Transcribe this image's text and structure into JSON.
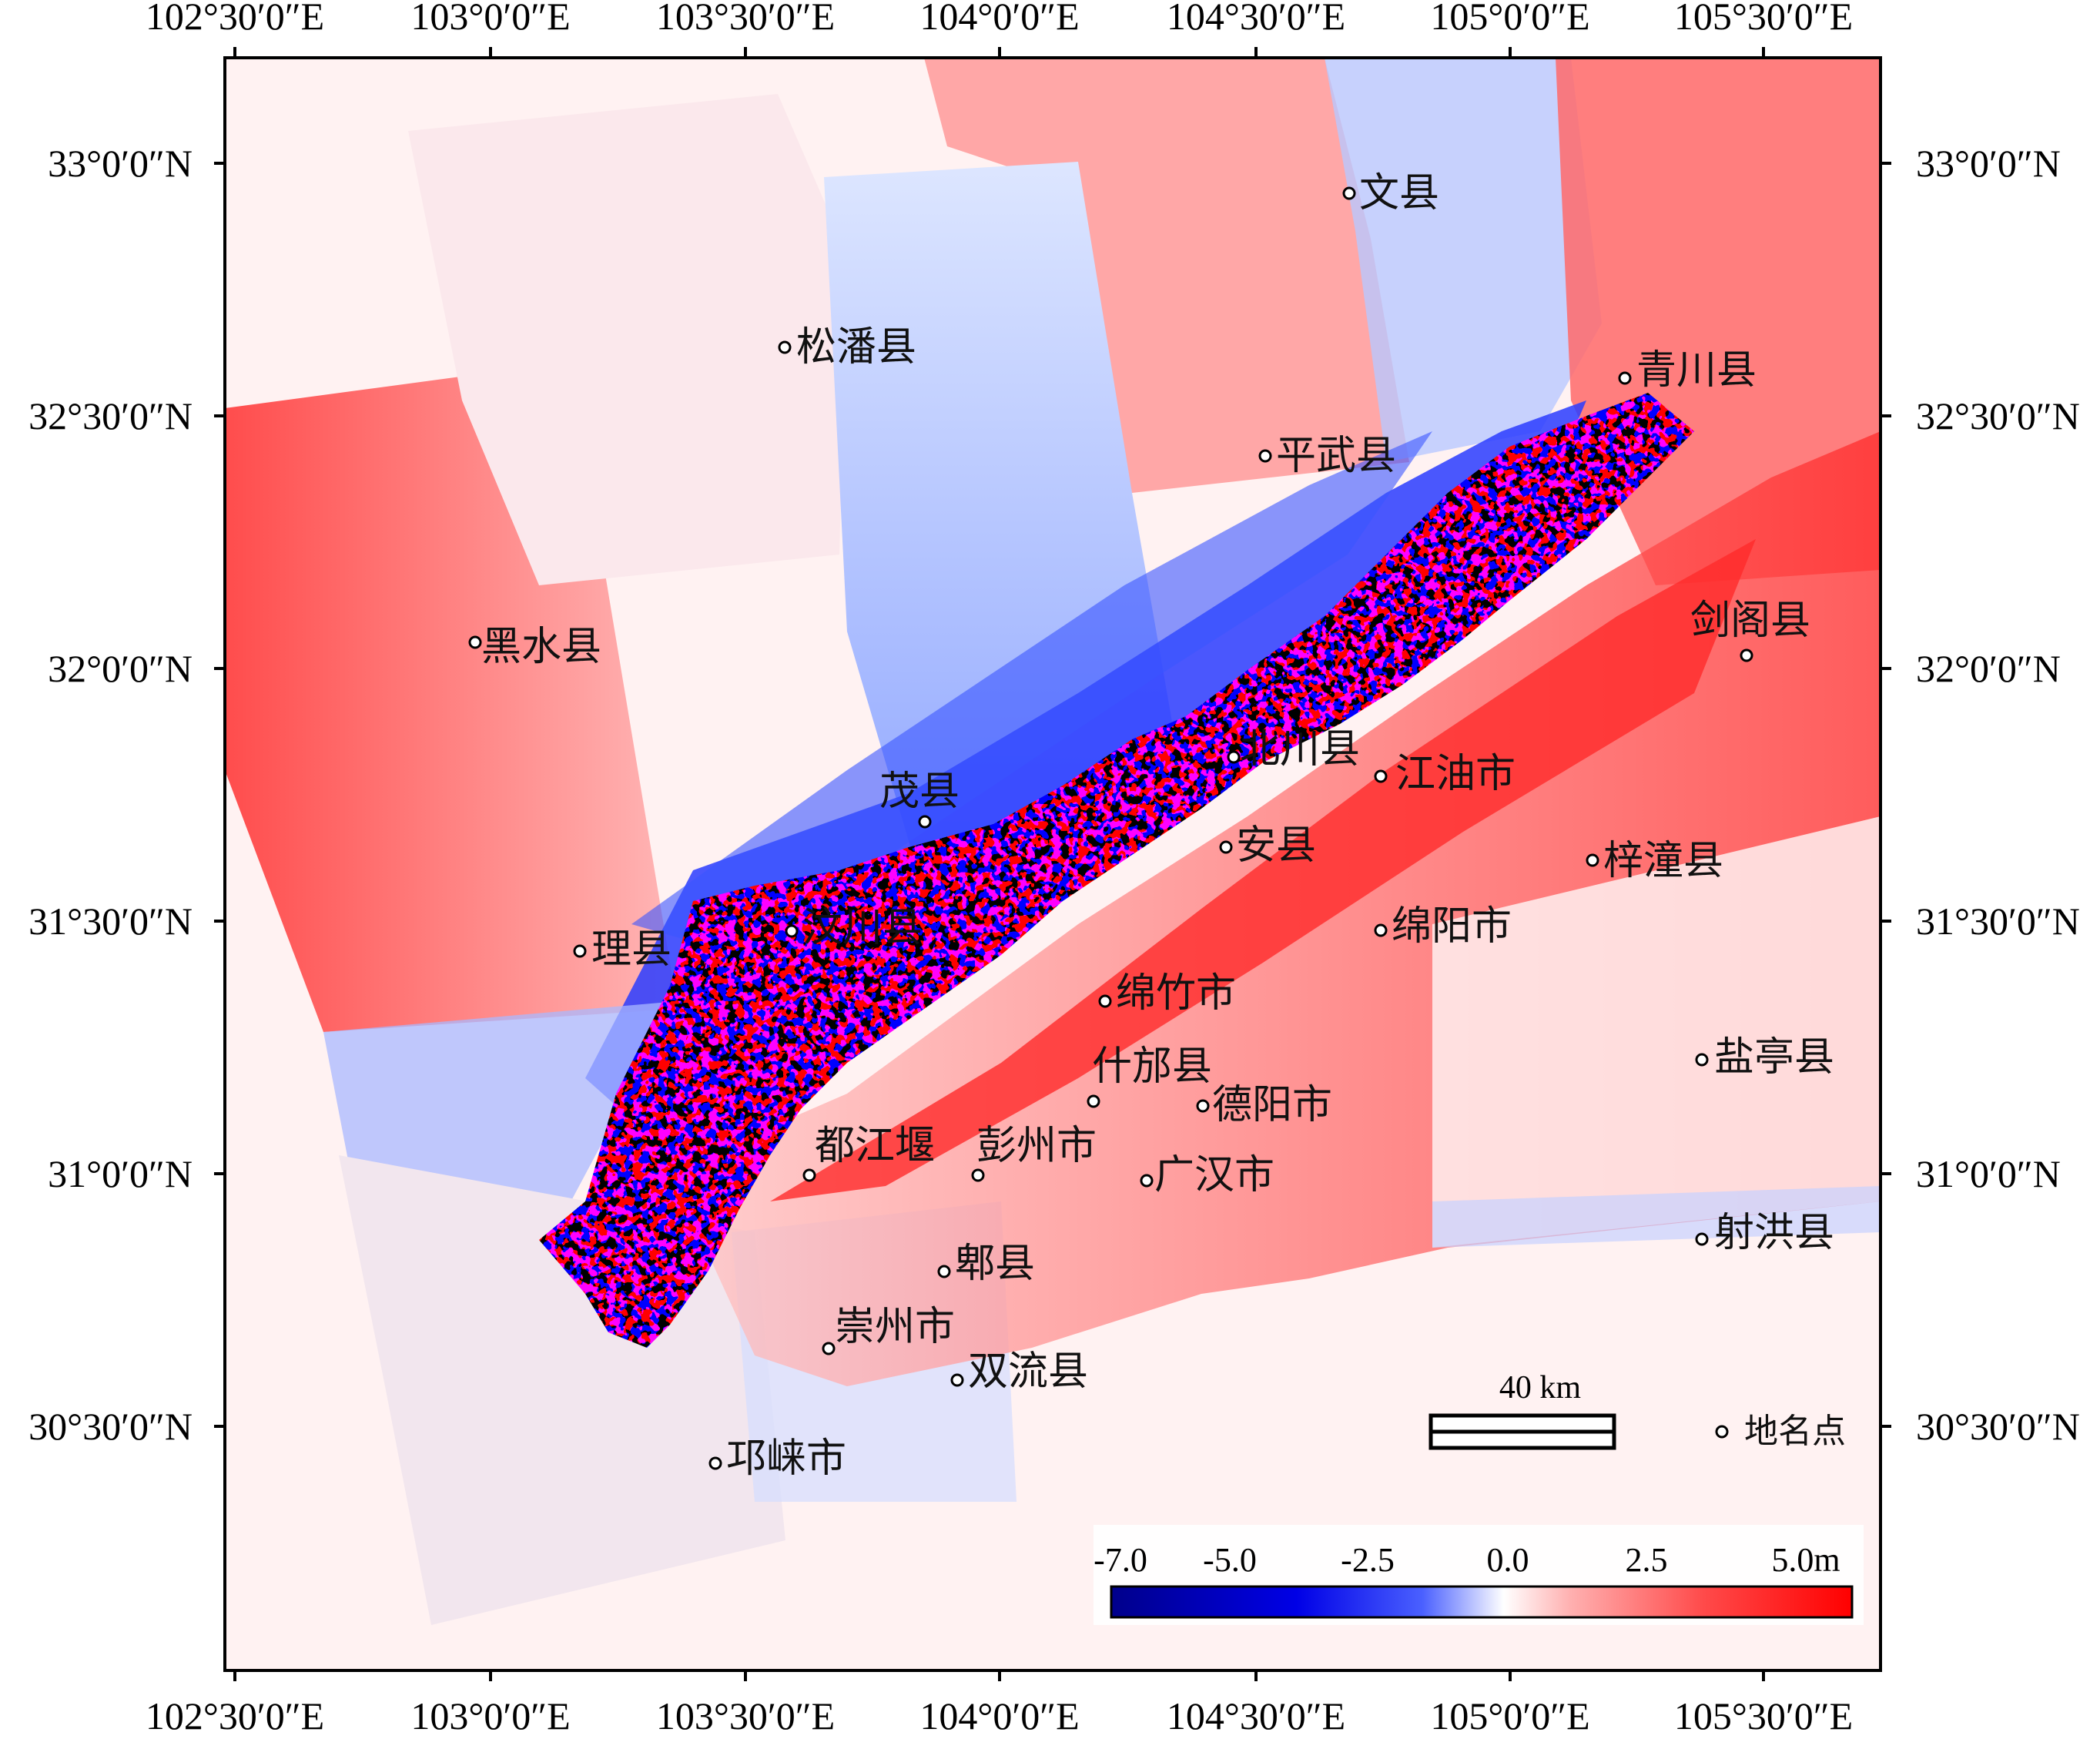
{
  "axes": {
    "top_labels": [
      "102°30′0″E",
      "103°0′0″E",
      "103°30′0″E",
      "104°0′0″E",
      "104°30′0″E",
      "105°0′0″E",
      "105°30′0″E"
    ],
    "bottom_labels": [
      "102°30′0″E",
      "103°0′0″E",
      "103°30′0″E",
      "104°0′0″E",
      "104°30′0″E",
      "105°0′0″E",
      "105°30′0″E"
    ],
    "left_labels": [
      "33°0′0″N",
      "32°30′0″N",
      "32°0′0″N",
      "31°30′0″N",
      "31°0′0″N",
      "30°30′0″N"
    ],
    "right_labels": [
      "33°0′0″N",
      "32°30′0″N",
      "32°0′0″N",
      "31°30′0″N",
      "31°0′0″N",
      "30°30′0″N"
    ]
  },
  "places": [
    {
      "name": "文县"
    },
    {
      "name": "松潘县"
    },
    {
      "name": "青川县"
    },
    {
      "name": "平武县"
    },
    {
      "name": "黑水县"
    },
    {
      "name": "剑阁县"
    },
    {
      "name": "北川县"
    },
    {
      "name": "江油市"
    },
    {
      "name": "茂县"
    },
    {
      "name": "安县"
    },
    {
      "name": "梓潼县"
    },
    {
      "name": "汶川县"
    },
    {
      "name": "理县"
    },
    {
      "name": "绵阳市"
    },
    {
      "name": "绵竹市"
    },
    {
      "name": "盐亭县"
    },
    {
      "name": "什邡县"
    },
    {
      "name": "德阳市"
    },
    {
      "name": "都江堰"
    },
    {
      "name": "彭州市"
    },
    {
      "name": "广汉市"
    },
    {
      "name": "射洪县"
    },
    {
      "name": "郫县"
    },
    {
      "name": "崇州市"
    },
    {
      "name": "双流县"
    },
    {
      "name": "邛崃市"
    }
  ],
  "scale_bar": {
    "label": "40  km"
  },
  "legend": {
    "point_label": "地名点"
  },
  "colorbar": {
    "labels": [
      "-7.0",
      "-5.0",
      "-2.5",
      "0.0",
      "2.5",
      "5.0m"
    ],
    "colors": {
      "min": "#00008b",
      "mid_low": "#1010ff",
      "zero": "#ffffff",
      "mid_high": "#ff4040",
      "max": "#ff0000"
    }
  }
}
